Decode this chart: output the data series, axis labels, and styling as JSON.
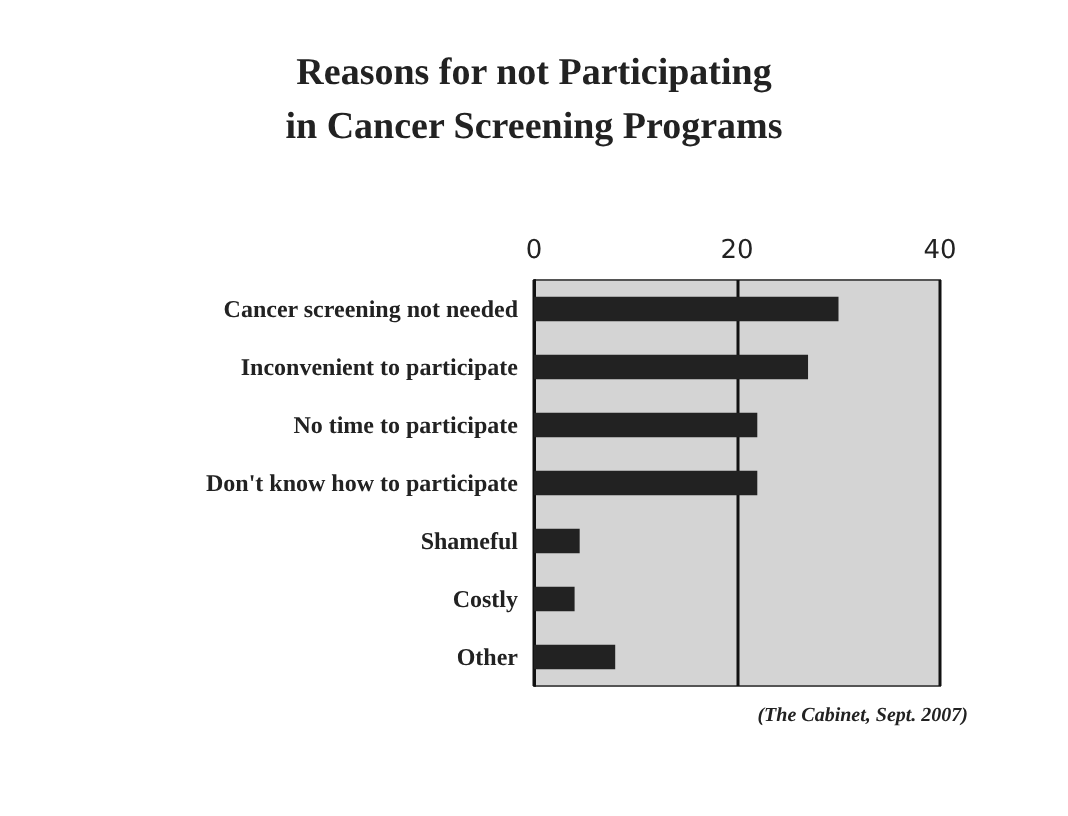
{
  "chart_data": {
    "type": "bar",
    "orientation": "horizontal",
    "title": "Reasons for not Participating\nin Cancer Screening Programs",
    "categories": [
      "Cancer screening not needed",
      "Inconvenient to participate",
      "No time to participate",
      "Don't know how to participate",
      "Shameful",
      "Costly",
      "Other"
    ],
    "values": [
      30,
      27,
      22,
      22,
      4.5,
      4,
      8
    ],
    "color": "#222222",
    "xlim": [
      0,
      40
    ],
    "xticks": [
      0,
      20,
      40
    ],
    "grid": "x",
    "annotations": [
      "(The Cabinet, Sept. 2007)"
    ]
  }
}
